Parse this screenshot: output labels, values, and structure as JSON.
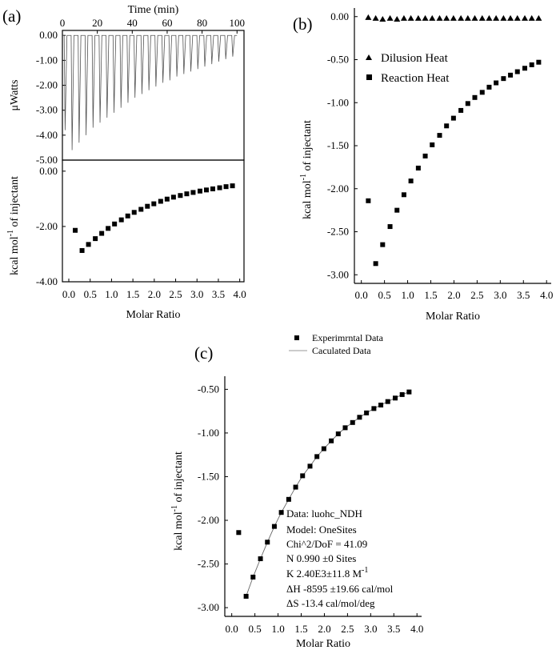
{
  "chart_data": [
    {
      "panel": "a",
      "type": "line",
      "panel_label": "(a)",
      "top_xlabel": "Time (min)",
      "top_xticks": [
        "0",
        "20",
        "40",
        "60",
        "80",
        "100"
      ],
      "top_xlim": [
        0,
        104
      ],
      "top_ylabel": "μWatts",
      "top_yticks": [
        "0.00",
        "-1.00",
        "-2.00",
        "-3.00",
        "-4.00",
        "-5.00"
      ],
      "top_ylim": [
        -5.0,
        0.2
      ],
      "peaks": {
        "times": [
          1,
          5,
          9,
          13,
          17,
          21,
          25,
          29,
          33,
          37,
          41,
          45,
          49,
          53,
          57,
          61,
          65,
          69,
          73,
          77,
          81,
          85,
          89,
          93,
          97
        ],
        "depths": [
          -3.8,
          -4.6,
          -4.3,
          -4.0,
          -3.7,
          -3.5,
          -3.3,
          -3.1,
          -2.9,
          -2.7,
          -2.5,
          -2.35,
          -2.2,
          -2.05,
          -1.9,
          -1.8,
          -1.65,
          -1.55,
          -1.45,
          -1.35,
          -1.25,
          -1.15,
          -1.05,
          -0.95,
          -0.85
        ]
      },
      "bottom_ylabel": "kcal mol-1 of injectant",
      "bottom_yticks": [
        "0.00",
        "-2.00",
        "-4.00"
      ],
      "bottom_ylim": [
        -4.0,
        0.4
      ],
      "xlabel": "Molar Ratio",
      "xticks": [
        "0.0",
        "0.5",
        "1.0",
        "1.5",
        "2.0",
        "2.5",
        "3.0",
        "3.5",
        "4.0"
      ],
      "xlim": [
        -0.15,
        4.1
      ],
      "x": [
        0.15,
        0.31,
        0.46,
        0.62,
        0.77,
        0.92,
        1.07,
        1.23,
        1.38,
        1.53,
        1.69,
        1.84,
        1.99,
        2.15,
        2.3,
        2.45,
        2.61,
        2.76,
        2.91,
        3.07,
        3.22,
        3.37,
        3.53,
        3.68,
        3.83
      ],
      "y": [
        -2.14,
        -2.87,
        -2.65,
        -2.44,
        -2.25,
        -2.07,
        -1.91,
        -1.76,
        -1.62,
        -1.49,
        -1.38,
        -1.27,
        -1.18,
        -1.09,
        -1.01,
        -0.94,
        -0.88,
        -0.82,
        -0.77,
        -0.72,
        -0.68,
        -0.64,
        -0.6,
        -0.56,
        -0.53
      ]
    },
    {
      "panel": "b",
      "type": "scatter",
      "panel_label": "(b)",
      "xlabel": "Molar Ratio",
      "ylabel": "kcal mol-1 of injectant",
      "xticks": [
        "0.0",
        "0.5",
        "1.0",
        "1.5",
        "2.0",
        "2.5",
        "3.0",
        "3.5",
        "4.0"
      ],
      "xlim": [
        -0.15,
        4.1
      ],
      "yticks": [
        "0.00",
        "-0.50",
        "-1.00",
        "-1.50",
        "-2.00",
        "-2.50",
        "-3.00"
      ],
      "ylim": [
        -3.1,
        0.1
      ],
      "legend": "top-left",
      "series": [
        {
          "name": "Dilusion Heat",
          "marker": "triangle",
          "x": [
            0.15,
            0.31,
            0.46,
            0.62,
            0.77,
            0.92,
            1.07,
            1.23,
            1.38,
            1.53,
            1.69,
            1.84,
            1.99,
            2.15,
            2.3,
            2.45,
            2.61,
            2.76,
            2.91,
            3.07,
            3.22,
            3.37,
            3.53,
            3.68,
            3.83
          ],
          "y": [
            -0.01,
            -0.02,
            -0.03,
            -0.02,
            -0.03,
            -0.02,
            -0.02,
            -0.02,
            -0.02,
            -0.02,
            -0.02,
            -0.02,
            -0.02,
            -0.02,
            -0.02,
            -0.02,
            -0.02,
            -0.02,
            -0.02,
            -0.02,
            -0.02,
            -0.02,
            -0.02,
            -0.02,
            -0.02
          ]
        },
        {
          "name": "Reaction Heat",
          "marker": "square",
          "x": [
            0.15,
            0.31,
            0.46,
            0.62,
            0.77,
            0.92,
            1.07,
            1.23,
            1.38,
            1.53,
            1.69,
            1.84,
            1.99,
            2.15,
            2.3,
            2.45,
            2.61,
            2.76,
            2.91,
            3.07,
            3.22,
            3.37,
            3.53,
            3.68,
            3.83
          ],
          "y": [
            -2.14,
            -2.87,
            -2.65,
            -2.44,
            -2.25,
            -2.07,
            -1.91,
            -1.76,
            -1.62,
            -1.49,
            -1.38,
            -1.27,
            -1.18,
            -1.09,
            -1.01,
            -0.94,
            -0.88,
            -0.82,
            -0.77,
            -0.72,
            -0.68,
            -0.64,
            -0.6,
            -0.56,
            -0.53
          ]
        }
      ]
    },
    {
      "panel": "c",
      "type": "scatter",
      "panel_label": "(c)",
      "xlabel": "Molar Ratio",
      "ylabel": "kcal mol-1 of injectant",
      "xticks": [
        "0.0",
        "0.5",
        "1.0",
        "1.5",
        "2.0",
        "2.5",
        "3.0",
        "3.5",
        "4.0"
      ],
      "xlim": [
        -0.15,
        4.1
      ],
      "yticks": [
        "-0.50",
        "-1.00",
        "-1.50",
        "-2.00",
        "-2.50",
        "-3.00"
      ],
      "ylim": [
        -3.1,
        -0.35
      ],
      "legend": "top",
      "series": [
        {
          "name": "Experimrntal Data",
          "marker": "square",
          "x": [
            0.15,
            0.31,
            0.46,
            0.62,
            0.77,
            0.92,
            1.07,
            1.23,
            1.38,
            1.53,
            1.69,
            1.84,
            1.99,
            2.15,
            2.3,
            2.45,
            2.61,
            2.76,
            2.91,
            3.07,
            3.22,
            3.37,
            3.53,
            3.68,
            3.83
          ],
          "y": [
            -2.14,
            -2.87,
            -2.65,
            -2.44,
            -2.25,
            -2.07,
            -1.91,
            -1.76,
            -1.62,
            -1.49,
            -1.38,
            -1.27,
            -1.18,
            -1.09,
            -1.01,
            -0.94,
            -0.88,
            -0.82,
            -0.77,
            -0.72,
            -0.68,
            -0.64,
            -0.6,
            -0.56,
            -0.53
          ]
        },
        {
          "name": "Caculated Data",
          "marker": "line",
          "x": [
            0.31,
            0.46,
            0.62,
            0.77,
            0.92,
            1.07,
            1.23,
            1.38,
            1.53,
            1.69,
            1.84,
            1.99,
            2.15,
            2.3,
            2.45,
            2.61,
            2.76,
            2.91,
            3.07,
            3.22,
            3.37,
            3.53,
            3.68,
            3.83
          ],
          "y": [
            -2.87,
            -2.65,
            -2.44,
            -2.25,
            -2.07,
            -1.91,
            -1.76,
            -1.62,
            -1.49,
            -1.38,
            -1.27,
            -1.18,
            -1.09,
            -1.01,
            -0.94,
            -0.88,
            -0.82,
            -0.77,
            -0.72,
            -0.68,
            -0.64,
            -0.6,
            -0.56,
            -0.53
          ]
        }
      ],
      "annotation": [
        "Data: luohc_NDH",
        "Model: OneSites",
        "Chi^2/DoF = 41.09",
        "N   0.990   ±0 Sites",
        "K   2.40E3±11.8 M-1",
        "ΔH -8595   ±19.66 cal/mol",
        "ΔS  -13.4 cal/mol/deg"
      ]
    }
  ]
}
